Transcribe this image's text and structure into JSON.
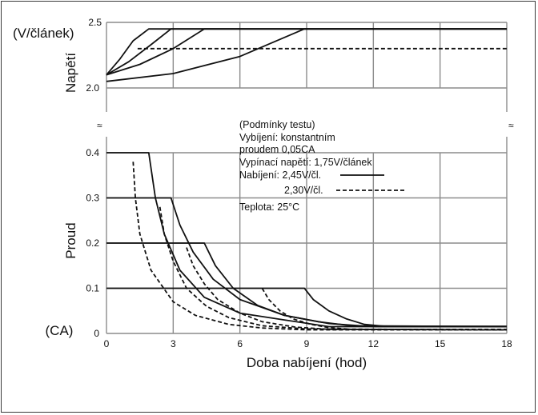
{
  "chart_data": {
    "type": "line",
    "xlabel": "Doba nabíjení (hod)",
    "x_ticks": [
      0,
      3,
      6,
      9,
      12,
      15,
      18
    ],
    "xlim": [
      0,
      18
    ],
    "grid": true,
    "voltage_panel": {
      "ylabel": "Napětí",
      "unit_label": "(V/článek)",
      "y_ticks": [
        "2.0",
        "2.5"
      ],
      "ylim": [
        2.0,
        2.5
      ],
      "series": [
        {
          "style": "solid",
          "x": [
            0,
            0.6,
            1.2,
            1.9,
            18
          ],
          "y": [
            2.1,
            2.22,
            2.36,
            2.45,
            2.45
          ]
        },
        {
          "style": "solid",
          "x": [
            0,
            1,
            2,
            2.9,
            18
          ],
          "y": [
            2.1,
            2.2,
            2.33,
            2.45,
            2.45
          ]
        },
        {
          "style": "solid",
          "x": [
            0,
            1.5,
            3,
            4.4,
            18
          ],
          "y": [
            2.1,
            2.18,
            2.3,
            2.45,
            2.45
          ]
        },
        {
          "style": "solid",
          "x": [
            0,
            3,
            6,
            8.9,
            18
          ],
          "y": [
            2.05,
            2.11,
            2.24,
            2.45,
            2.45
          ]
        },
        {
          "style": "dashed",
          "x": [
            1.4,
            18
          ],
          "y": [
            2.3,
            2.3
          ]
        }
      ]
    },
    "current_panel": {
      "ylabel": "Proud",
      "unit_label": "(CA)",
      "y_ticks": [
        "0",
        "0.1",
        "0.2",
        "0.3",
        "0.4"
      ],
      "ylim": [
        0,
        0.4
      ],
      "series": [
        {
          "style": "solid",
          "x": [
            0,
            1.9,
            2.2,
            2.6,
            3.3,
            4.4,
            6,
            8,
            10,
            18
          ],
          "y": [
            0.4,
            0.4,
            0.3,
            0.22,
            0.14,
            0.08,
            0.045,
            0.03,
            0.015,
            0.015
          ]
        },
        {
          "style": "solid",
          "x": [
            0,
            2.9,
            3.3,
            3.9,
            4.8,
            6,
            8,
            10,
            12,
            18
          ],
          "y": [
            0.3,
            0.3,
            0.24,
            0.18,
            0.12,
            0.075,
            0.04,
            0.022,
            0.015,
            0.015
          ]
        },
        {
          "style": "solid",
          "x": [
            0,
            4.4,
            4.9,
            5.7,
            6.8,
            8,
            9.5,
            11,
            18
          ],
          "y": [
            0.2,
            0.2,
            0.15,
            0.1,
            0.062,
            0.04,
            0.026,
            0.017,
            0.015
          ]
        },
        {
          "style": "solid",
          "x": [
            0,
            8.9,
            9.3,
            10,
            10.8,
            11.6,
            12.5,
            18
          ],
          "y": [
            0.1,
            0.1,
            0.075,
            0.05,
            0.032,
            0.02,
            0.016,
            0.016
          ]
        },
        {
          "style": "dashed",
          "x": [
            1.2,
            1.3,
            1.5,
            2,
            3,
            4,
            5.5,
            7,
            9,
            18
          ],
          "y": [
            0.38,
            0.3,
            0.22,
            0.14,
            0.07,
            0.04,
            0.02,
            0.012,
            0.008,
            0.008
          ]
        },
        {
          "style": "dashed",
          "x": [
            2.4,
            2.6,
            3,
            3.6,
            4.5,
            5.5,
            7,
            9,
            18
          ],
          "y": [
            0.28,
            0.22,
            0.16,
            0.1,
            0.06,
            0.035,
            0.017,
            0.01,
            0.008
          ]
        },
        {
          "style": "dashed",
          "x": [
            3.6,
            3.9,
            4.4,
            5,
            6,
            7,
            8.5,
            10,
            18
          ],
          "y": [
            0.19,
            0.15,
            0.11,
            0.075,
            0.045,
            0.026,
            0.014,
            0.009,
            0.008
          ]
        },
        {
          "style": "dashed",
          "x": [
            7,
            7.3,
            7.8,
            8.4,
            9.2,
            10,
            11,
            18
          ],
          "y": [
            0.1,
            0.075,
            0.05,
            0.032,
            0.02,
            0.013,
            0.009,
            0.009
          ]
        }
      ]
    },
    "conditions": {
      "lines": [
        "(Podmínky testu)",
        "Vybíjení: konstantním",
        "proudem 0,05CA",
        "Vypínací napětí: 1,75V/článek",
        "Nabíjení: 2,45V/čl.",
        "2,30V/čl.",
        "Teplota: 25°C"
      ]
    },
    "break_mark": "≈"
  }
}
